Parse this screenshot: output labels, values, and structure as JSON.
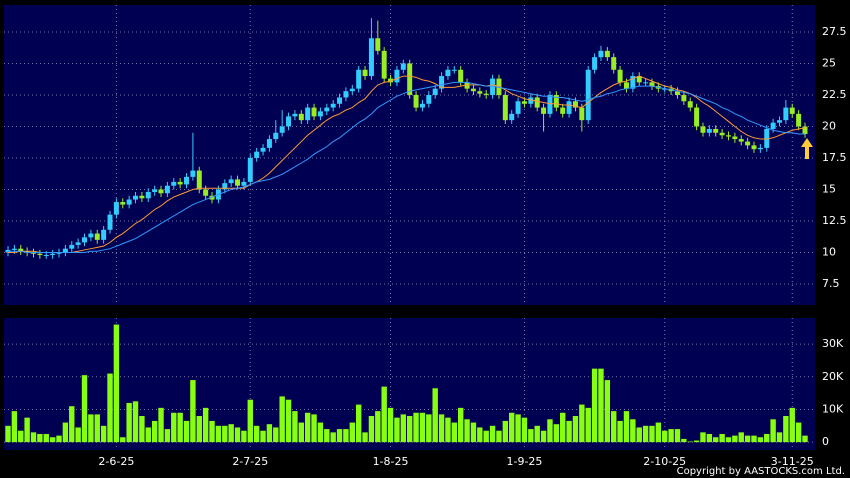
{
  "chart_data": [
    {
      "type": "candlestick",
      "categories": [
        null,
        null,
        null,
        null,
        null,
        null,
        null,
        null,
        null,
        null,
        null,
        null,
        null,
        null,
        null,
        null,
        null,
        "2-6-25",
        null,
        null,
        null,
        null,
        null,
        null,
        null,
        null,
        null,
        null,
        null,
        null,
        null,
        null,
        null,
        null,
        null,
        null,
        null,
        null,
        "2-7-25",
        null,
        null,
        null,
        null,
        null,
        null,
        null,
        null,
        null,
        null,
        null,
        null,
        null,
        null,
        null,
        null,
        null,
        null,
        null,
        null,
        null,
        "1-8-25",
        null,
        null,
        null,
        null,
        null,
        null,
        null,
        null,
        null,
        null,
        null,
        null,
        null,
        null,
        null,
        null,
        null,
        null,
        null,
        null,
        "1-9-25",
        null,
        null,
        null,
        null,
        null,
        null,
        null,
        null,
        null,
        null,
        null,
        null,
        null,
        null,
        null,
        null,
        null,
        null,
        null,
        null,
        null,
        "2-10-25",
        null,
        null,
        null,
        null,
        null,
        null,
        null,
        null,
        null,
        null,
        null,
        null,
        null,
        null,
        null,
        null,
        null,
        null,
        null,
        "3-11-25",
        null,
        null
      ],
      "open": [
        10.0,
        10.2,
        10.3,
        10.1,
        10.0,
        9.9,
        9.8,
        9.8,
        9.9,
        10.0,
        10.3,
        10.6,
        10.8,
        11.2,
        11.5,
        11.0,
        11.8,
        13.0,
        14.0,
        13.8,
        14.2,
        14.5,
        14.3,
        14.8,
        15.0,
        14.7,
        15.3,
        15.6,
        15.4,
        16.0,
        16.5,
        15.0,
        14.5,
        14.2,
        15.0,
        15.5,
        15.8,
        15.3,
        15.6,
        17.5,
        18.0,
        18.3,
        19.0,
        19.5,
        20.0,
        20.8,
        21.0,
        20.5,
        21.5,
        20.8,
        21.2,
        21.5,
        21.8,
        22.3,
        22.8,
        23.0,
        24.5,
        24.0,
        27.0,
        26.0,
        23.8,
        23.5,
        24.5,
        25.0,
        22.5,
        21.5,
        21.8,
        22.5,
        23.0,
        24.0,
        24.5,
        24.5,
        23.5,
        23.0,
        22.8,
        22.6,
        22.5,
        23.8,
        22.5,
        20.5,
        21.0,
        22.0,
        21.8,
        22.3,
        21.5,
        21.0,
        22.5,
        21.5,
        21.0,
        22.0,
        21.5,
        20.5,
        24.5,
        25.5,
        26.0,
        25.5,
        24.5,
        23.5,
        23.0,
        24.0,
        23.5,
        23.5,
        23.2,
        23.0,
        23.0,
        22.8,
        22.5,
        22.0,
        21.5,
        20.0,
        19.5,
        19.8,
        19.5,
        19.3,
        19.2,
        19.0,
        18.8,
        18.5,
        18.2,
        18.3,
        19.8,
        20.3,
        20.5,
        21.5,
        21.0,
        20.0
      ],
      "high": [
        10.5,
        10.6,
        10.6,
        10.4,
        10.3,
        10.2,
        10.1,
        10.2,
        10.3,
        10.6,
        10.9,
        11.1,
        11.5,
        11.8,
        11.8,
        12.1,
        13.3,
        14.3,
        14.3,
        14.5,
        14.8,
        14.8,
        15.1,
        15.3,
        15.3,
        15.6,
        15.9,
        15.9,
        16.3,
        19.5,
        16.8,
        15.3,
        14.8,
        15.3,
        15.8,
        16.1,
        16.1,
        15.9,
        17.8,
        18.3,
        18.6,
        19.3,
        20.5,
        21.3,
        21.1,
        21.3,
        21.3,
        21.8,
        21.8,
        21.5,
        21.8,
        22.1,
        22.6,
        23.1,
        23.3,
        24.8,
        24.8,
        28.6,
        28.4,
        26.3,
        24.1,
        24.8,
        25.3,
        25.3,
        22.8,
        22.1,
        22.8,
        23.3,
        24.3,
        24.8,
        24.8,
        24.8,
        23.8,
        23.3,
        23.1,
        22.9,
        24.1,
        24.1,
        22.8,
        21.3,
        22.3,
        22.3,
        22.6,
        22.6,
        21.8,
        22.8,
        22.8,
        21.8,
        22.3,
        22.3,
        21.8,
        24.8,
        25.8,
        26.4,
        26.3,
        25.8,
        24.8,
        23.8,
        24.3,
        24.3,
        23.8,
        23.8,
        23.5,
        23.3,
        23.3,
        23.1,
        22.8,
        22.3,
        21.8,
        20.3,
        20.1,
        20.1,
        19.8,
        19.6,
        19.5,
        19.3,
        19.1,
        18.8,
        18.6,
        20.1,
        20.6,
        20.8,
        22.1,
        21.8,
        21.3,
        20.3
      ],
      "low": [
        9.7,
        9.9,
        9.8,
        9.7,
        9.6,
        9.5,
        9.5,
        9.5,
        9.6,
        9.7,
        10.0,
        10.3,
        10.5,
        10.9,
        10.7,
        10.7,
        11.5,
        12.7,
        13.5,
        13.5,
        13.9,
        14.0,
        14.0,
        14.5,
        14.4,
        14.4,
        15.0,
        15.1,
        15.1,
        15.7,
        14.7,
        14.2,
        13.9,
        13.9,
        14.7,
        15.2,
        15.0,
        15.0,
        15.3,
        17.2,
        17.7,
        18.0,
        18.7,
        19.2,
        19.7,
        20.5,
        20.2,
        20.2,
        20.5,
        20.5,
        20.9,
        21.2,
        21.5,
        22.0,
        22.5,
        22.7,
        23.7,
        23.7,
        25.7,
        23.5,
        23.2,
        23.2,
        24.2,
        22.2,
        21.2,
        21.2,
        21.5,
        22.2,
        22.7,
        23.7,
        24.2,
        23.2,
        22.7,
        22.5,
        22.3,
        22.2,
        22.2,
        22.2,
        20.2,
        20.2,
        20.7,
        21.5,
        21.5,
        21.2,
        19.6,
        20.7,
        21.2,
        20.7,
        20.7,
        21.2,
        19.6,
        20.2,
        24.2,
        25.2,
        25.2,
        24.2,
        23.2,
        22.7,
        22.7,
        23.2,
        23.2,
        22.9,
        22.7,
        22.7,
        22.5,
        22.2,
        21.7,
        21.2,
        19.7,
        19.2,
        19.2,
        19.2,
        19.0,
        18.9,
        18.7,
        18.5,
        18.2,
        17.9,
        17.9,
        18.0,
        19.5,
        20.0,
        20.2,
        20.7,
        19.7,
        19.1
      ],
      "close": [
        10.2,
        10.3,
        10.1,
        10.0,
        9.9,
        9.8,
        9.8,
        9.9,
        10.0,
        10.3,
        10.6,
        10.8,
        11.2,
        11.5,
        11.0,
        11.8,
        13.0,
        14.0,
        13.8,
        14.2,
        14.5,
        14.3,
        14.8,
        15.0,
        14.7,
        15.3,
        15.6,
        15.4,
        16.0,
        16.5,
        15.0,
        14.5,
        14.2,
        15.0,
        15.5,
        15.8,
        15.3,
        15.6,
        17.5,
        18.0,
        18.3,
        19.0,
        19.5,
        20.0,
        20.8,
        21.0,
        20.5,
        21.5,
        20.8,
        21.2,
        21.5,
        21.8,
        22.3,
        22.8,
        23.0,
        24.5,
        24.0,
        27.0,
        26.0,
        23.8,
        23.5,
        24.5,
        25.0,
        22.5,
        21.5,
        21.8,
        22.5,
        23.0,
        24.0,
        24.5,
        24.5,
        23.5,
        23.0,
        22.8,
        22.6,
        22.5,
        23.8,
        22.5,
        20.5,
        21.0,
        22.0,
        21.8,
        22.3,
        21.5,
        21.0,
        22.5,
        21.5,
        21.0,
        22.0,
        21.5,
        20.5,
        24.5,
        25.5,
        26.0,
        25.5,
        24.5,
        23.5,
        23.0,
        24.0,
        23.5,
        23.5,
        23.2,
        23.0,
        23.0,
        22.8,
        22.5,
        22.0,
        21.5,
        20.0,
        19.5,
        19.8,
        19.5,
        19.3,
        19.2,
        19.0,
        18.8,
        18.5,
        18.2,
        18.3,
        19.8,
        20.3,
        20.5,
        21.5,
        21.0,
        20.0,
        19.4
      ],
      "up_color": "#33ccff",
      "down_color": "#99ee22",
      "overlays": [
        {
          "color": "#ff9933",
          "values": [
            10.0,
            10.0,
            10.1,
            10.1,
            10.1,
            10.0,
            10.0,
            10.0,
            10.0,
            10.0,
            10.0,
            10.1,
            10.2,
            10.3,
            10.4,
            10.5,
            10.8,
            11.2,
            11.5,
            11.9,
            12.3,
            12.6,
            13.0,
            13.4,
            13.7,
            14.1,
            14.4,
            14.6,
            14.8,
            15.0,
            15.1,
            15.1,
            15.1,
            15.1,
            15.1,
            15.1,
            15.1,
            15.1,
            15.4,
            15.6,
            15.9,
            16.3,
            16.8,
            17.3,
            17.8,
            18.3,
            18.8,
            19.3,
            19.7,
            20.1,
            20.5,
            20.8,
            21.0,
            21.3,
            21.5,
            21.9,
            22.2,
            22.8,
            23.3,
            23.5,
            23.6,
            23.8,
            24.0,
            24.0,
            23.9,
            23.7,
            23.6,
            23.4,
            23.1,
            23.1,
            23.1,
            23.2,
            23.3,
            23.3,
            23.3,
            23.2,
            23.3,
            23.2,
            22.9,
            22.6,
            22.4,
            22.2,
            22.1,
            22.0,
            21.9,
            21.8,
            21.8,
            21.7,
            21.7,
            21.6,
            21.5,
            21.9,
            22.3,
            22.7,
            23.0,
            23.3,
            23.5,
            23.6,
            23.8,
            24.0,
            23.8,
            23.6,
            23.4,
            23.2,
            23.1,
            22.9,
            22.8,
            22.6,
            22.3,
            21.9,
            21.6,
            21.2,
            20.8,
            20.4,
            20.0,
            19.6,
            19.3,
            19.1,
            19.0,
            19.0,
            19.1,
            19.3,
            19.5,
            19.7,
            19.8,
            19.9
          ]
        },
        {
          "color": "#3399ff",
          "values": [
            10.1,
            10.1,
            10.1,
            10.0,
            10.0,
            10.0,
            10.0,
            10.0,
            10.0,
            10.0,
            10.0,
            10.0,
            10.0,
            10.1,
            10.1,
            10.2,
            10.3,
            10.5,
            10.7,
            10.9,
            11.1,
            11.4,
            11.7,
            12.0,
            12.3,
            12.6,
            12.9,
            13.2,
            13.5,
            13.8,
            14.0,
            14.2,
            14.4,
            14.6,
            14.8,
            15.0,
            15.1,
            15.2,
            15.4,
            15.6,
            15.7,
            15.8,
            16.0,
            16.2,
            16.5,
            16.8,
            17.1,
            17.4,
            17.8,
            18.1,
            18.4,
            18.8,
            19.1,
            19.5,
            19.9,
            20.3,
            20.6,
            21.0,
            21.5,
            21.8,
            22.1,
            22.4,
            22.6,
            22.8,
            22.9,
            23.0,
            23.1,
            23.2,
            23.3,
            23.4,
            23.5,
            23.5,
            23.5,
            23.4,
            23.3,
            23.2,
            23.2,
            23.1,
            23.0,
            22.9,
            22.8,
            22.7,
            22.6,
            22.5,
            22.4,
            22.4,
            22.3,
            22.3,
            22.2,
            22.1,
            22.0,
            22.1,
            22.3,
            22.4,
            22.6,
            22.7,
            22.9,
            23.0,
            23.1,
            23.2,
            23.2,
            23.2,
            23.1,
            23.0,
            22.9,
            22.8,
            22.7,
            22.6,
            22.4,
            22.2,
            22.0,
            21.8,
            21.5,
            21.3,
            21.0,
            20.8,
            20.5,
            20.3,
            20.1,
            19.9,
            19.7,
            19.6,
            19.5,
            19.5,
            19.4,
            19.4
          ]
        }
      ],
      "ylim": [
        5.83,
        29.64
      ],
      "yticks": [
        7.5,
        10,
        12.5,
        15,
        17.5,
        20,
        22.5,
        25,
        27.5
      ],
      "grid": true
    },
    {
      "type": "bar",
      "values": [
        5000,
        9500,
        3500,
        7500,
        3000,
        2500,
        2500,
        1500,
        2000,
        6000,
        11000,
        4500,
        20500,
        8500,
        8500,
        5000,
        21000,
        36000,
        1500,
        12000,
        12500,
        8000,
        4500,
        6500,
        10500,
        4000,
        9000,
        9000,
        6500,
        19000,
        8000,
        10500,
        6500,
        5000,
        5000,
        5500,
        4500,
        3500,
        13000,
        5000,
        3500,
        5500,
        4500,
        14000,
        13000,
        9500,
        6000,
        9000,
        8500,
        6000,
        4000,
        3000,
        4000,
        4000,
        6000,
        11500,
        3000,
        8000,
        9500,
        17000,
        10500,
        7500,
        8500,
        8000,
        9000,
        9000,
        8500,
        16500,
        8500,
        7500,
        6000,
        10500,
        7000,
        6000,
        4500,
        3500,
        5000,
        3500,
        6500,
        9000,
        8500,
        7500,
        4000,
        5000,
        3500,
        7000,
        5500,
        9000,
        6500,
        8000,
        11500,
        10500,
        22500,
        22500,
        19000,
        9500,
        6500,
        9500,
        7000,
        4500,
        5000,
        5000,
        6000,
        3500,
        4000,
        4000,
        1000,
        200,
        500,
        3000,
        2500,
        1500,
        2500,
        1500,
        2000,
        3000,
        2000,
        2000,
        1500,
        2500,
        7000,
        3000,
        8000,
        10500,
        6000,
        2000
      ],
      "color": "#88ff11",
      "ylim": [
        -2400,
        38000
      ],
      "yticks": [
        0,
        {
          "value": 10000,
          "label": "10K"
        },
        {
          "value": 20000,
          "label": "20K"
        },
        {
          "value": 30000,
          "label": "30K"
        }
      ],
      "grid": true
    }
  ],
  "footer": "Copyright by AASTOCKS.com Ltd."
}
